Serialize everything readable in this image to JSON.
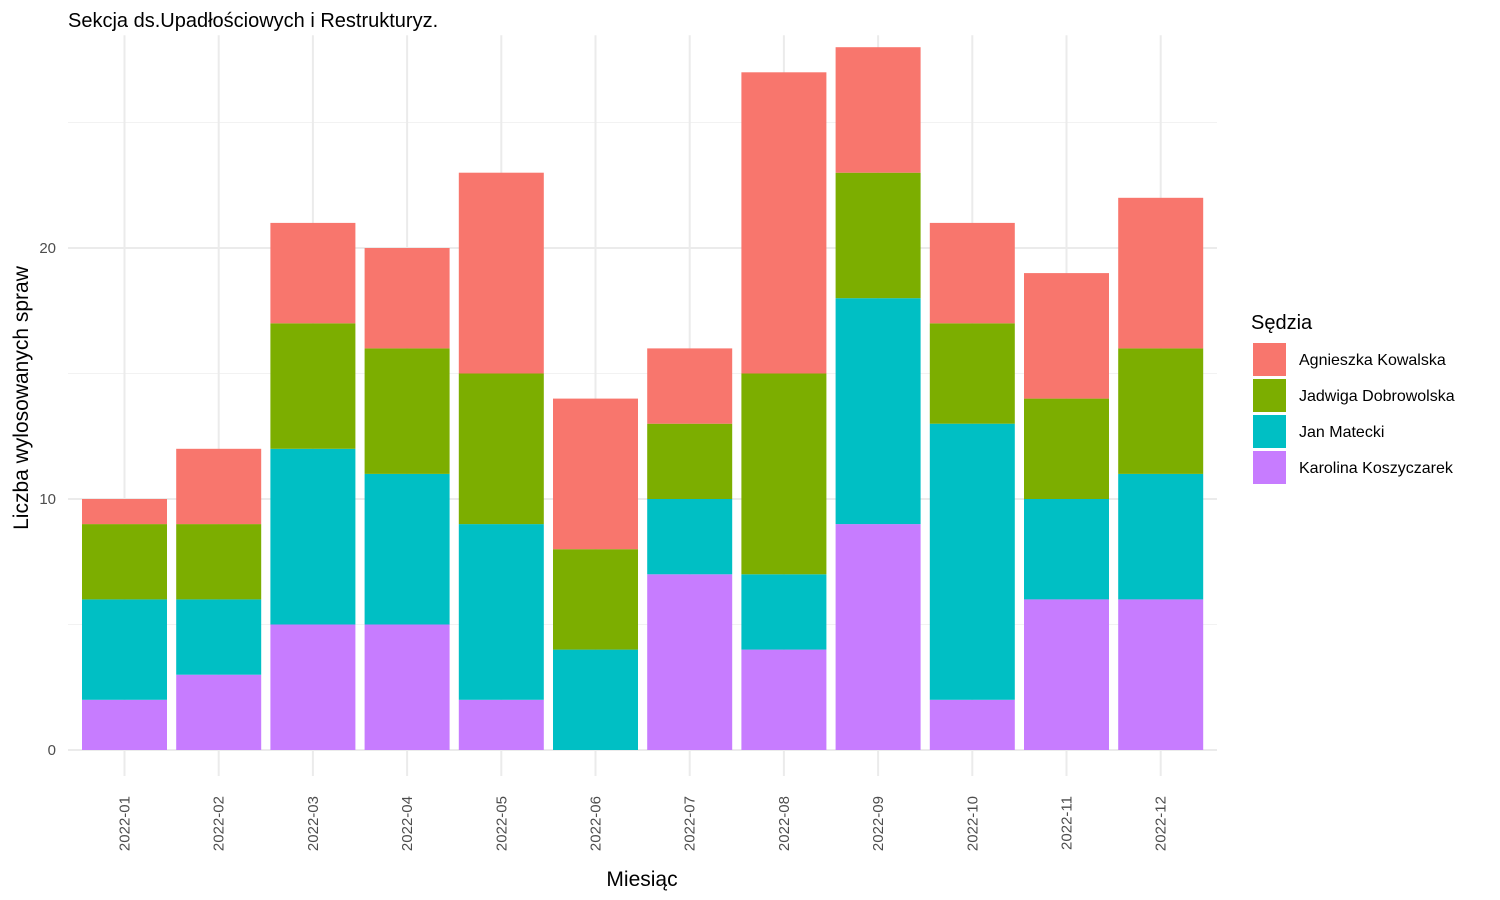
{
  "chart_data": {
    "type": "bar",
    "stacked": true,
    "title": "Sekcja ds.Upadłościowych i Restrukturyz.",
    "xlabel": "Miesiąc",
    "ylabel": "Liczba wylosowanych spraw",
    "ylim": [
      0,
      28
    ],
    "yticks": [
      0,
      10,
      20
    ],
    "grid": true,
    "categories": [
      "2022-01",
      "2022-02",
      "2022-03",
      "2022-04",
      "2022-05",
      "2022-06",
      "2022-07",
      "2022-08",
      "2022-09",
      "2022-10",
      "2022-11",
      "2022-12"
    ],
    "legend_title": "Sędzia",
    "legend_position": "right",
    "stack_order_bottom_to_top": [
      "Karolina Koszyczarek",
      "Jan Matecki",
      "Jadwiga Dobrowolska",
      "Agnieszka Kowalska"
    ],
    "series": [
      {
        "name": "Agnieszka Kowalska",
        "color": "#F8766D",
        "values": [
          1,
          3,
          4,
          4,
          8,
          6,
          3,
          12,
          5,
          4,
          5,
          6
        ]
      },
      {
        "name": "Jadwiga Dobrowolska",
        "color": "#7CAE00",
        "values": [
          3,
          3,
          5,
          5,
          6,
          4,
          3,
          8,
          5,
          4,
          4,
          5
        ]
      },
      {
        "name": "Jan Matecki",
        "color": "#00BFC4",
        "values": [
          4,
          3,
          7,
          6,
          7,
          4,
          3,
          3,
          9,
          11,
          4,
          5
        ]
      },
      {
        "name": "Karolina Koszyczarek",
        "color": "#C77CFF",
        "values": [
          2,
          3,
          5,
          5,
          2,
          0,
          7,
          4,
          9,
          2,
          6,
          6
        ]
      }
    ]
  }
}
